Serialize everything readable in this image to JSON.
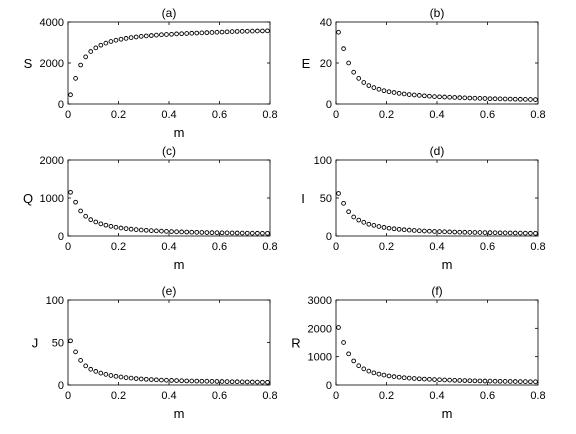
{
  "figure": {
    "colors": {
      "axes": "#000000",
      "marker_edge": "#000000",
      "marker_fill": "#ffffff",
      "background": "#ffffff"
    },
    "marker": "open-circle"
  },
  "chart_data": [
    {
      "type": "scatter",
      "title": "(a)",
      "xlabel": "m",
      "ylabel": "S",
      "xlim": [
        0,
        0.8
      ],
      "ylim": [
        0,
        4000
      ],
      "xticks": [
        0,
        0.2,
        0.4,
        0.6,
        0.8
      ],
      "xtick_labels": [
        "0",
        "0.2",
        "0.4",
        "0.6",
        "0.8"
      ],
      "yticks": [
        0,
        2000,
        4000
      ],
      "ytick_labels": [
        "0",
        "2000",
        "4000"
      ],
      "x": [
        0.01,
        0.03,
        0.05,
        0.07,
        0.09,
        0.11,
        0.13,
        0.15,
        0.17,
        0.19,
        0.21,
        0.23,
        0.25,
        0.27,
        0.29,
        0.31,
        0.33,
        0.35,
        0.37,
        0.39,
        0.41,
        0.43,
        0.45,
        0.47,
        0.49,
        0.51,
        0.53,
        0.55,
        0.57,
        0.59,
        0.61,
        0.63,
        0.65,
        0.67,
        0.69,
        0.71,
        0.73,
        0.75,
        0.77,
        0.79
      ],
      "y": [
        450,
        1250,
        1900,
        2300,
        2560,
        2740,
        2870,
        2970,
        3050,
        3110,
        3160,
        3200,
        3240,
        3270,
        3300,
        3320,
        3340,
        3360,
        3380,
        3390,
        3400,
        3420,
        3430,
        3440,
        3450,
        3460,
        3470,
        3480,
        3490,
        3500,
        3510,
        3520,
        3530,
        3540,
        3545,
        3550,
        3555,
        3560,
        3565,
        3570
      ]
    },
    {
      "type": "scatter",
      "title": "(b)",
      "xlabel": "",
      "ylabel": "E",
      "xlim": [
        0,
        0.8
      ],
      "ylim": [
        0,
        40
      ],
      "xticks": [
        0,
        0.2,
        0.4,
        0.6,
        0.8
      ],
      "xtick_labels": [
        "0",
        "0.2",
        "0.4",
        "0.6",
        "0.8"
      ],
      "yticks": [
        0,
        20,
        40
      ],
      "ytick_labels": [
        "0",
        "20",
        "40"
      ],
      "x": [
        0.01,
        0.03,
        0.05,
        0.07,
        0.09,
        0.11,
        0.13,
        0.15,
        0.17,
        0.19,
        0.21,
        0.23,
        0.25,
        0.27,
        0.29,
        0.31,
        0.33,
        0.35,
        0.37,
        0.39,
        0.41,
        0.43,
        0.45,
        0.47,
        0.49,
        0.51,
        0.53,
        0.55,
        0.57,
        0.59,
        0.61,
        0.63,
        0.65,
        0.67,
        0.69,
        0.71,
        0.73,
        0.75,
        0.77,
        0.79
      ],
      "y": [
        35,
        27,
        20,
        15.5,
        12.5,
        10.5,
        9,
        8,
        7.2,
        6.5,
        6,
        5.6,
        5.2,
        4.9,
        4.6,
        4.4,
        4.2,
        4,
        3.8,
        3.6,
        3.5,
        3.4,
        3.3,
        3.2,
        3.1,
        3,
        2.9,
        2.8,
        2.75,
        2.7,
        2.6,
        2.55,
        2.5,
        2.45,
        2.4,
        2.35,
        2.3,
        2.25,
        2.2,
        2.15
      ]
    },
    {
      "type": "scatter",
      "title": "(c)",
      "xlabel": "m",
      "ylabel": "Q",
      "xlim": [
        0,
        0.8
      ],
      "ylim": [
        0,
        2000
      ],
      "xticks": [
        0,
        0.2,
        0.4,
        0.6,
        0.8
      ],
      "xtick_labels": [
        "0",
        "0.2",
        "0.4",
        "0.6",
        "0.8"
      ],
      "yticks": [
        0,
        1000,
        2000
      ],
      "ytick_labels": [
        "0",
        "1000",
        "2000"
      ],
      "x": [
        0.01,
        0.03,
        0.05,
        0.07,
        0.09,
        0.11,
        0.13,
        0.15,
        0.17,
        0.19,
        0.21,
        0.23,
        0.25,
        0.27,
        0.29,
        0.31,
        0.33,
        0.35,
        0.37,
        0.39,
        0.41,
        0.43,
        0.45,
        0.47,
        0.49,
        0.51,
        0.53,
        0.55,
        0.57,
        0.59,
        0.61,
        0.63,
        0.65,
        0.67,
        0.69,
        0.71,
        0.73,
        0.75,
        0.77,
        0.79
      ],
      "y": [
        1150,
        890,
        660,
        520,
        430,
        370,
        320,
        285,
        255,
        230,
        210,
        195,
        180,
        168,
        158,
        150,
        142,
        135,
        128,
        122,
        117,
        112,
        108,
        104,
        100,
        97,
        94,
        91,
        88,
        86,
        84,
        82,
        80,
        78,
        76,
        74,
        73,
        72,
        71,
        70
      ]
    },
    {
      "type": "scatter",
      "title": "(d)",
      "xlabel": "m",
      "ylabel": "I",
      "xlim": [
        0,
        0.8
      ],
      "ylim": [
        0,
        100
      ],
      "xticks": [
        0,
        0.2,
        0.4,
        0.6,
        0.8
      ],
      "xtick_labels": [
        "0",
        "0.2",
        "0.4",
        "0.6",
        "0.8"
      ],
      "yticks": [
        0,
        50,
        100
      ],
      "ytick_labels": [
        "0",
        "50",
        "100"
      ],
      "x": [
        0.01,
        0.03,
        0.05,
        0.07,
        0.09,
        0.11,
        0.13,
        0.15,
        0.17,
        0.19,
        0.21,
        0.23,
        0.25,
        0.27,
        0.29,
        0.31,
        0.33,
        0.35,
        0.37,
        0.39,
        0.41,
        0.43,
        0.45,
        0.47,
        0.49,
        0.51,
        0.53,
        0.55,
        0.57,
        0.59,
        0.61,
        0.63,
        0.65,
        0.67,
        0.69,
        0.71,
        0.73,
        0.75,
        0.77,
        0.79
      ],
      "y": [
        56,
        43,
        32,
        25,
        21,
        18,
        15.5,
        14,
        12.5,
        11.3,
        10.3,
        9.5,
        8.8,
        8.2,
        7.7,
        7.3,
        6.9,
        6.6,
        6.3,
        6,
        5.8,
        5.6,
        5.4,
        5.2,
        5,
        4.9,
        4.8,
        4.7,
        4.6,
        4.5,
        4.4,
        4.3,
        4.2,
        4.1,
        4,
        3.9,
        3.8,
        3.7,
        3.6,
        3.5
      ]
    },
    {
      "type": "scatter",
      "title": "(e)",
      "xlabel": "m",
      "ylabel": "J",
      "xlim": [
        0,
        0.8
      ],
      "ylim": [
        0,
        100
      ],
      "xticks": [
        0,
        0.2,
        0.4,
        0.6,
        0.8
      ],
      "xtick_labels": [
        "0",
        "0.2",
        "0.4",
        "0.6",
        "0.8"
      ],
      "yticks": [
        0,
        50,
        100
      ],
      "ytick_labels": [
        "0",
        "50",
        "100"
      ],
      "x": [
        0.01,
        0.03,
        0.05,
        0.07,
        0.09,
        0.11,
        0.13,
        0.15,
        0.17,
        0.19,
        0.21,
        0.23,
        0.25,
        0.27,
        0.29,
        0.31,
        0.33,
        0.35,
        0.37,
        0.39,
        0.41,
        0.43,
        0.45,
        0.47,
        0.49,
        0.51,
        0.53,
        0.55,
        0.57,
        0.59,
        0.61,
        0.63,
        0.65,
        0.67,
        0.69,
        0.71,
        0.73,
        0.75,
        0.77,
        0.79
      ],
      "y": [
        52,
        39,
        29,
        22.5,
        18.5,
        16,
        14,
        12.5,
        11.2,
        10.2,
        9.4,
        8.7,
        8.1,
        7.6,
        7.1,
        6.7,
        6.4,
        6.1,
        5.8,
        5.6,
        5.4,
        5.2,
        5,
        4.8,
        4.7,
        4.6,
        4.5,
        4.4,
        4.3,
        4.2,
        4.1,
        4,
        3.9,
        3.8,
        3.7,
        3.6,
        3.5,
        3.4,
        3.3,
        3.2
      ]
    },
    {
      "type": "scatter",
      "title": "(f)",
      "xlabel": "m",
      "ylabel": "R",
      "xlim": [
        0,
        0.8
      ],
      "ylim": [
        0,
        3000
      ],
      "xticks": [
        0,
        0.2,
        0.4,
        0.6,
        0.8
      ],
      "xtick_labels": [
        "0",
        "0.2",
        "0.4",
        "0.6",
        "0.8"
      ],
      "yticks": [
        0,
        1000,
        2000,
        3000
      ],
      "ytick_labels": [
        "0",
        "1000",
        "2000",
        "3000"
      ],
      "x": [
        0.01,
        0.03,
        0.05,
        0.07,
        0.09,
        0.11,
        0.13,
        0.15,
        0.17,
        0.19,
        0.21,
        0.23,
        0.25,
        0.27,
        0.29,
        0.31,
        0.33,
        0.35,
        0.37,
        0.39,
        0.41,
        0.43,
        0.45,
        0.47,
        0.49,
        0.51,
        0.53,
        0.55,
        0.57,
        0.59,
        0.61,
        0.63,
        0.65,
        0.67,
        0.69,
        0.71,
        0.73,
        0.75,
        0.77,
        0.79
      ],
      "y": [
        2030,
        1500,
        1100,
        850,
        680,
        570,
        490,
        430,
        385,
        350,
        320,
        295,
        275,
        258,
        243,
        230,
        219,
        209,
        200,
        192,
        185,
        178,
        172,
        166,
        161,
        156,
        152,
        148,
        144,
        140,
        137,
        134,
        131,
        128,
        125,
        123,
        121,
        119,
        117,
        115
      ]
    }
  ]
}
